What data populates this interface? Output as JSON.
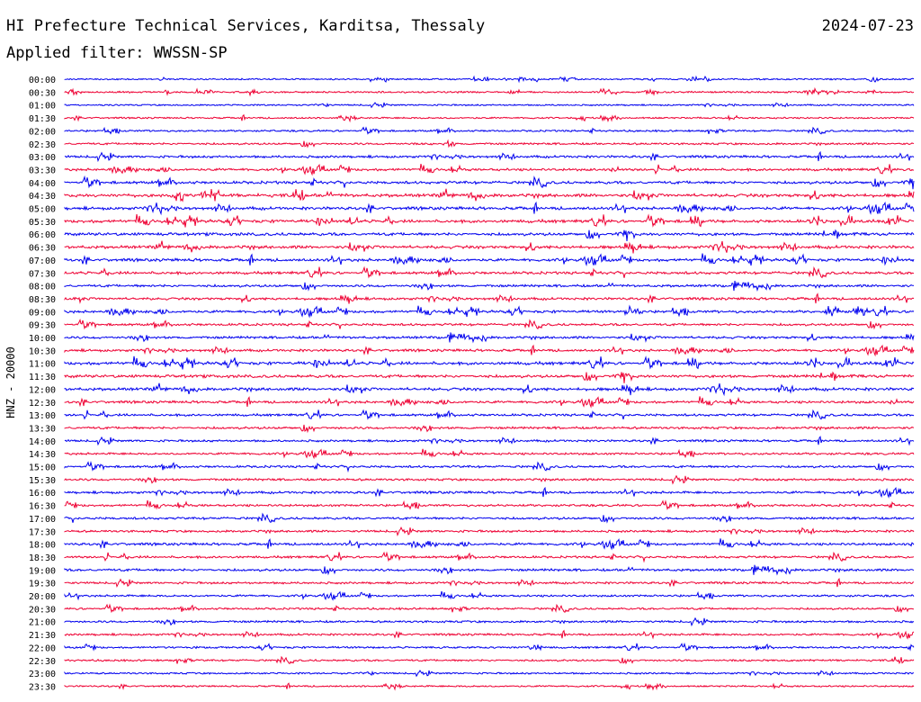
{
  "header": {
    "station": "HI Prefecture Technical Services, Karditsa, Thessaly",
    "date": "2024-07-23",
    "filter_line": "Applied filter: WWSSN-SP"
  },
  "colors": {
    "trace_a": "#0000ee",
    "trace_b": "#ee0033",
    "background": "#ffffff"
  },
  "chart_data": {
    "type": "line",
    "ylabel": "HNZ - 20000",
    "row_labels": [
      "00:00",
      "00:30",
      "01:00",
      "01:30",
      "02:00",
      "02:30",
      "03:00",
      "03:30",
      "04:00",
      "04:30",
      "05:00",
      "05:30",
      "06:00",
      "06:30",
      "07:00",
      "07:30",
      "08:00",
      "08:30",
      "09:00",
      "09:30",
      "10:00",
      "10:30",
      "11:00",
      "11:30",
      "12:00",
      "12:30",
      "13:00",
      "13:30",
      "14:00",
      "14:30",
      "15:00",
      "15:30",
      "16:00",
      "16:30",
      "17:00",
      "17:30",
      "18:00",
      "18:30",
      "19:00",
      "19:30",
      "20:00",
      "20:30",
      "21:00",
      "21:30",
      "22:00",
      "22:30",
      "23:00",
      "23:30"
    ],
    "row_activity": [
      0.15,
      0.25,
      0.15,
      0.2,
      0.3,
      0.4,
      0.55,
      0.6,
      0.75,
      0.95,
      0.8,
      0.85,
      0.8,
      0.85,
      0.75,
      0.7,
      0.6,
      0.6,
      0.65,
      0.55,
      0.6,
      0.6,
      0.85,
      0.8,
      0.8,
      0.6,
      0.55,
      0.55,
      0.45,
      0.45,
      0.5,
      0.5,
      0.55,
      0.5,
      0.55,
      0.5,
      0.6,
      0.5,
      0.6,
      0.45,
      0.4,
      0.4,
      0.45,
      0.4,
      0.35,
      0.35,
      0.25,
      0.2
    ]
  }
}
